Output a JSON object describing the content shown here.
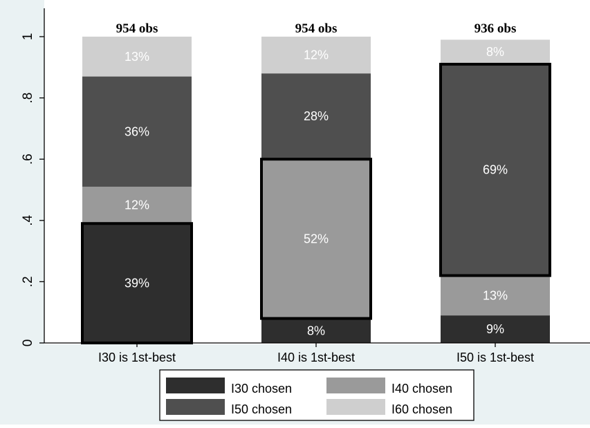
{
  "chart_data": {
    "type": "bar",
    "stacked": true,
    "categories": [
      "I30 is 1st-best",
      "I40 is 1st-best",
      "I50 is 1st-best"
    ],
    "obs_labels": [
      "954 obs",
      "954 obs",
      "936 obs"
    ],
    "series": [
      {
        "name": "I30 chosen",
        "color": "#2e2e2e",
        "values": [
          0.39,
          0.08,
          0.09
        ],
        "labels": [
          "39%",
          "8%",
          "9%"
        ]
      },
      {
        "name": "I40 chosen",
        "color": "#9a9a9a",
        "values": [
          0.12,
          0.52,
          0.13
        ],
        "labels": [
          "12%",
          "52%",
          "13%"
        ]
      },
      {
        "name": "I50 chosen",
        "color": "#4f4f4f",
        "values": [
          0.36,
          0.28,
          0.69
        ],
        "labels": [
          "36%",
          "28%",
          "69%"
        ]
      },
      {
        "name": "I60 chosen",
        "color": "#cfcfcf",
        "values": [
          0.13,
          0.12,
          0.08
        ],
        "labels": [
          "13%",
          "12%",
          "8%"
        ]
      }
    ],
    "highlighted_series": [
      "I30 chosen",
      "I40 chosen",
      "I50 chosen"
    ],
    "yticks": [
      "0",
      ".2",
      ".4",
      ".6",
      ".8",
      "1"
    ],
    "ylim": [
      0,
      1
    ],
    "grid": false,
    "legend_position": "bottom"
  }
}
